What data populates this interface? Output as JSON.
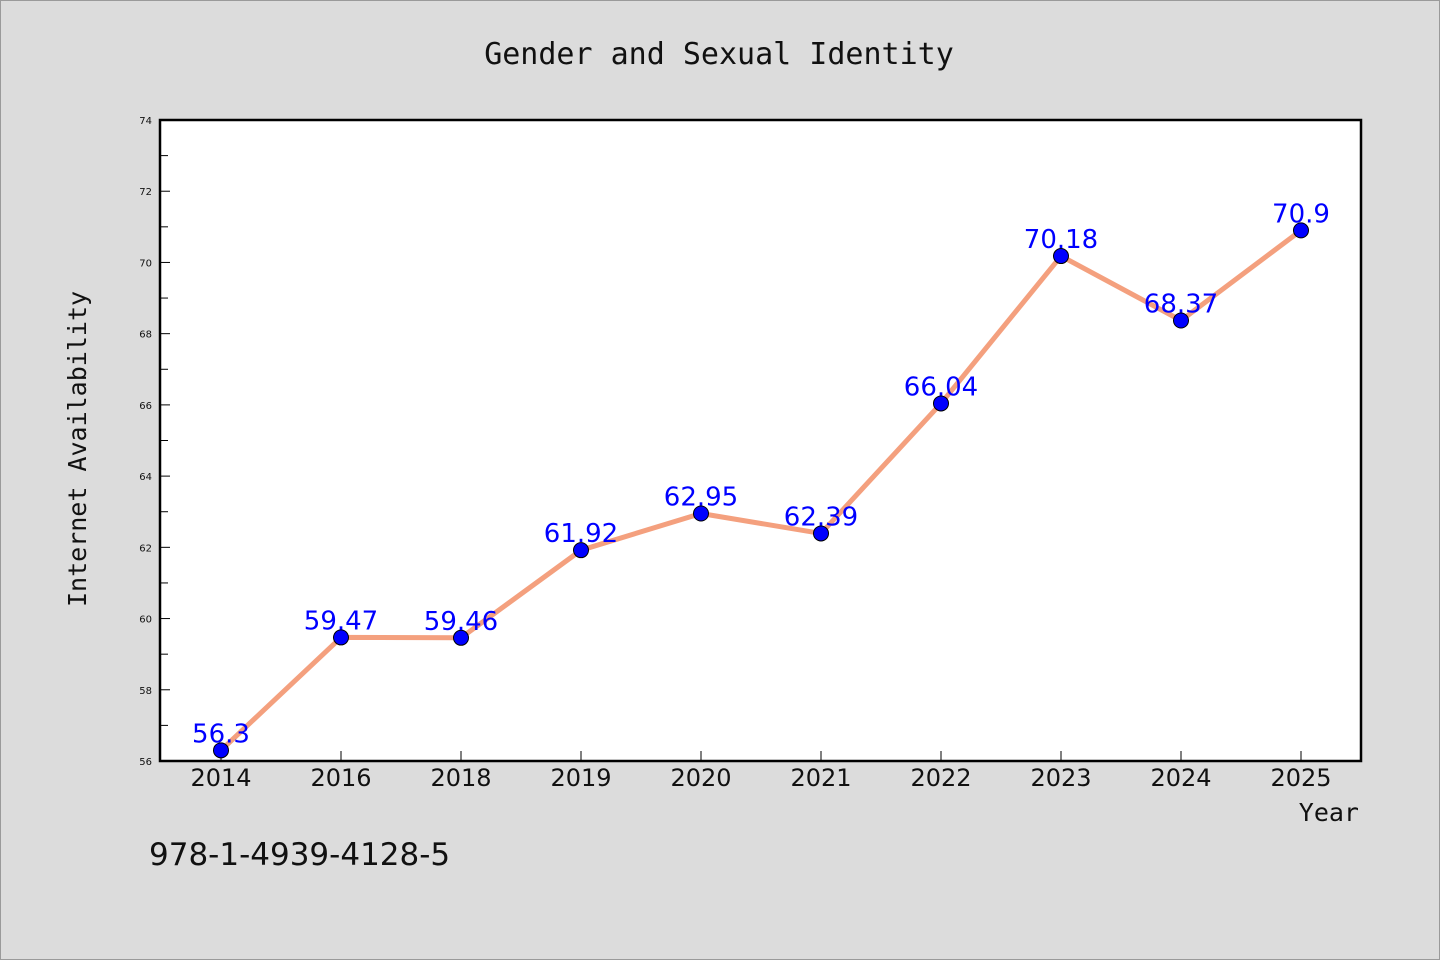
{
  "footer": {
    "isbn": "978-1-4939-4128-5"
  },
  "chart_data": {
    "type": "line",
    "title": "Gender and Sexual Identity",
    "xlabel": "Year",
    "ylabel": "Internet Availability",
    "categories": [
      "2014",
      "2016",
      "2018",
      "2019",
      "2020",
      "2021",
      "2022",
      "2023",
      "2024",
      "2025"
    ],
    "values": [
      56.3,
      59.47,
      59.46,
      61.92,
      62.95,
      62.39,
      66.04,
      70.18,
      68.37,
      70.9
    ],
    "data_labels": [
      "56.3",
      "59.47",
      "59.46",
      "61.92",
      "62.95",
      "62.39",
      "66.04",
      "70.18",
      "68.37",
      "70.9"
    ],
    "ylim": [
      56,
      74
    ],
    "yticks": [
      "56",
      "58",
      "60",
      "62",
      "64",
      "66",
      "68",
      "70",
      "72",
      "74"
    ],
    "grid": false,
    "line_color": "#f4a07e",
    "marker_color": "#0000ff",
    "label_color": "#0000ff",
    "background_color": "#dcdcdc",
    "plot_background_color": "#ffffff"
  }
}
